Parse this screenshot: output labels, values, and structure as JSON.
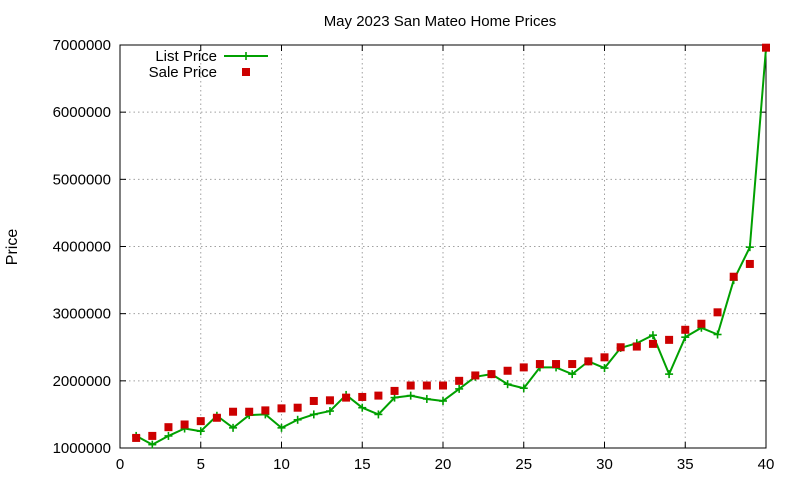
{
  "chart_data": {
    "type": "line",
    "title": "May 2023 San Mateo Home Prices",
    "xlabel": "",
    "ylabel": "Price",
    "xlim": [
      0,
      40
    ],
    "ylim": [
      1000000,
      7000000
    ],
    "xticks": [
      0,
      5,
      10,
      15,
      20,
      25,
      30,
      35,
      40
    ],
    "yticks": [
      1000000,
      2000000,
      3000000,
      4000000,
      5000000,
      6000000,
      7000000
    ],
    "grid": true,
    "legend_position": "top-left",
    "x": [
      1,
      2,
      3,
      4,
      5,
      6,
      7,
      8,
      9,
      10,
      11,
      12,
      13,
      14,
      15,
      16,
      17,
      18,
      19,
      20,
      21,
      22,
      23,
      24,
      25,
      26,
      27,
      28,
      29,
      30,
      31,
      32,
      33,
      34,
      35,
      36,
      37,
      38,
      39,
      40
    ],
    "series": [
      {
        "name": "List Price",
        "style": "line+cross",
        "color": "#00a000",
        "values": [
          1180000,
          1050000,
          1180000,
          1290000,
          1250000,
          1480000,
          1300000,
          1490000,
          1500000,
          1300000,
          1420000,
          1500000,
          1550000,
          1790000,
          1600000,
          1500000,
          1750000,
          1780000,
          1730000,
          1700000,
          1880000,
          2060000,
          2100000,
          1950000,
          1890000,
          2200000,
          2200000,
          2100000,
          2290000,
          2190000,
          2490000,
          2560000,
          2680000,
          2100000,
          2650000,
          2790000,
          2690000,
          3500000,
          3990000,
          6950000
        ]
      },
      {
        "name": "Sale Price",
        "style": "square",
        "color": "#cc0000",
        "values": [
          1150000,
          1180000,
          1310000,
          1350000,
          1400000,
          1450000,
          1540000,
          1540000,
          1560000,
          1590000,
          1600000,
          1700000,
          1710000,
          1750000,
          1760000,
          1780000,
          1850000,
          1930000,
          1930000,
          1930000,
          2000000,
          2080000,
          2100000,
          2150000,
          2200000,
          2250000,
          2250000,
          2250000,
          2290000,
          2350000,
          2500000,
          2510000,
          2550000,
          2610000,
          2760000,
          2850000,
          3020000,
          3550000,
          3740000,
          6960000
        ]
      }
    ]
  }
}
